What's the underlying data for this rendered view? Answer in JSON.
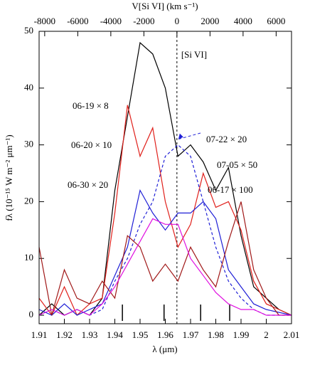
{
  "chart_data": {
    "type": "line",
    "x_label": "λ (μm)",
    "y_label": "fλ (10⁻¹⁵ W m⁻² μm⁻¹)",
    "x2_label": "V[Si VI] (km s⁻¹)",
    "x": [
      1.91,
      1.915,
      1.92,
      1.925,
      1.93,
      1.935,
      1.94,
      1.945,
      1.95,
      1.955,
      1.96,
      1.965,
      1.97,
      1.975,
      1.98,
      1.985,
      1.99,
      1.995,
      2.0,
      2.005,
      2.01
    ],
    "series": [
      {
        "name": "06-19 × 8",
        "color": "#000000",
        "dashed": false,
        "values": [
          0,
          2,
          0,
          1,
          0,
          3,
          22,
          35,
          48,
          46,
          40,
          28,
          30,
          27,
          22,
          26,
          14,
          5,
          3,
          1,
          0
        ]
      },
      {
        "name": "06-20 × 10",
        "color": "#e0201b",
        "dashed": false,
        "values": [
          3,
          0,
          5,
          0,
          2,
          3,
          18,
          37,
          28,
          33,
          20,
          12,
          16,
          25,
          19,
          20,
          15,
          6,
          2,
          1,
          0
        ]
      },
      {
        "name": "06-30 × 20",
        "color": "#1f1fd6",
        "dashed": false,
        "values": [
          1,
          0,
          2,
          0,
          1,
          2,
          7,
          12,
          22,
          18,
          15,
          18,
          18,
          20,
          17,
          8,
          5,
          2,
          1,
          0.5,
          0
        ]
      },
      {
        "name": "07-22 × 20",
        "color": "#1f1fd6",
        "dashed": true,
        "values": [
          0,
          1,
          0,
          1,
          0,
          1,
          6,
          10,
          16,
          20,
          28,
          30,
          28,
          20,
          12,
          6,
          3,
          1,
          0,
          0,
          0
        ]
      },
      {
        "name": "07-05 × 50",
        "color": "#a01818",
        "dashed": false,
        "values": [
          12,
          0,
          8,
          3,
          2,
          6,
          3,
          14,
          12,
          6,
          9,
          6,
          12,
          8,
          5,
          13,
          20,
          8,
          3,
          0,
          0
        ]
      },
      {
        "name": "06-17 × 100",
        "color": "#e010e0",
        "dashed": false,
        "values": [
          0,
          1,
          0,
          1,
          0,
          2,
          5,
          9,
          13,
          17,
          16,
          16,
          10,
          7,
          4,
          2,
          1,
          1,
          0,
          0,
          0
        ]
      }
    ],
    "xlim": [
      1.91,
      2.01
    ],
    "xticks": [
      1.91,
      1.92,
      1.93,
      1.94,
      1.95,
      1.96,
      1.97,
      1.98,
      1.99,
      2,
      2.01
    ],
    "ylim": [
      -1.5,
      50
    ],
    "yticks": [
      0,
      10,
      20,
      30,
      40,
      50
    ],
    "x2lim": [
      -8338,
      6930
    ],
    "x2ticks": [
      -8000,
      -6000,
      -4000,
      -2000,
      0,
      2000,
      4000,
      6000
    ],
    "reference_line": {
      "x": 1.9646,
      "label": "[Si VI]"
    },
    "line_markers": [
      1.943,
      1.9595,
      1.974,
      1.9855
    ]
  }
}
